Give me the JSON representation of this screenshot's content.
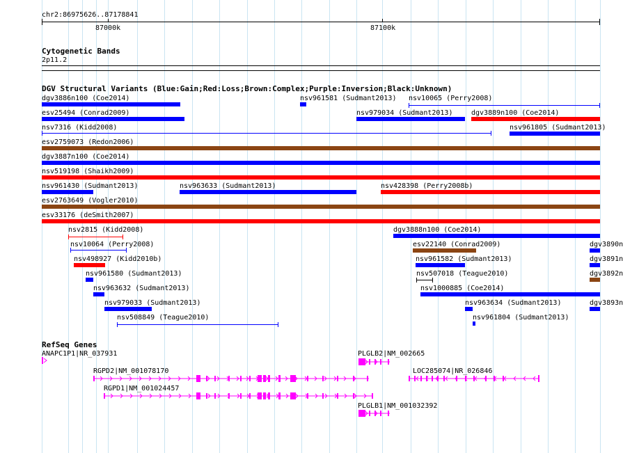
{
  "ruler": {
    "location": "chr2:86975626..87178841",
    "ticks": [
      "87000k",
      "87100k"
    ]
  },
  "cytoband": {
    "title": "Cytogenetic Bands",
    "band": "2p11.2"
  },
  "dgv": {
    "title": "DGV Structural Variants (Blue:Gain;Red:Loss;Brown:Complex;Purple:Inversion;Black:Unknown)",
    "colors": {
      "gain": "#0000ff",
      "loss": "#ff0000",
      "complex": "#8b4513",
      "unknown": "#000000"
    },
    "variants": [
      {
        "label": "dgv3886n100 (Coe2014)"
      },
      {
        "label": "nsv961581 (Sudmant2013)"
      },
      {
        "label": "nsv10065 (Perry2008)"
      },
      {
        "label": "esv25494 (Conrad2009)"
      },
      {
        "label": "nsv979034 (Sudmant2013)"
      },
      {
        "label": "dgv3889n100 (Coe2014)"
      },
      {
        "label": "nsv7316 (Kidd2008)"
      },
      {
        "label": "nsv961805 (Sudmant2013)"
      },
      {
        "label": "esv2759073 (Redon2006)"
      },
      {
        "label": "dgv3887n100 (Coe2014)"
      },
      {
        "label": "nsv519198 (Shaikh2009)"
      },
      {
        "label": "nsv961430 (Sudmant2013)"
      },
      {
        "label": "nsv963633 (Sudmant2013)"
      },
      {
        "label": "nsv428398 (Perry2008b)"
      },
      {
        "label": "esv2763649 (Vogler2010)"
      },
      {
        "label": "esv33176 (deSmith2007)"
      },
      {
        "label": "nsv2815 (Kidd2008)"
      },
      {
        "label": "dgv3888n100 (Coe2014)"
      },
      {
        "label": "nsv10064 (Perry2008)"
      },
      {
        "label": "esv22140 (Conrad2009)"
      },
      {
        "label": "dgv3890n"
      },
      {
        "label": "nsv498927 (Kidd2010b)"
      },
      {
        "label": "nsv961582 (Sudmant2013)"
      },
      {
        "label": "dgv3891n"
      },
      {
        "label": "nsv961580 (Sudmant2013)"
      },
      {
        "label": "nsv507018 (Teague2010)"
      },
      {
        "label": "dgv3892n"
      },
      {
        "label": "nsv963632 (Sudmant2013)"
      },
      {
        "label": "nsv1000885 (Coe2014)"
      },
      {
        "label": "nsv979033 (Sudmant2013)"
      },
      {
        "label": "nsv963634 (Sudmant2013)"
      },
      {
        "label": "dgv3893n"
      },
      {
        "label": "nsv508849 (Teague2010)"
      },
      {
        "label": "nsv961804 (Sudmant2013)"
      }
    ]
  },
  "refseq": {
    "title": "RefSeq Genes",
    "color": "#ff00ff",
    "genes": [
      {
        "label": "ANAPC1P1|NR_037931"
      },
      {
        "label": "PLGLB2|NM_002665"
      },
      {
        "label": "RGPD2|NM_001078170"
      },
      {
        "label": "LOC285074|NR_026846"
      },
      {
        "label": "RGPD1|NM_001024457"
      },
      {
        "label": "PLGLB1|NM_001032392"
      }
    ]
  }
}
